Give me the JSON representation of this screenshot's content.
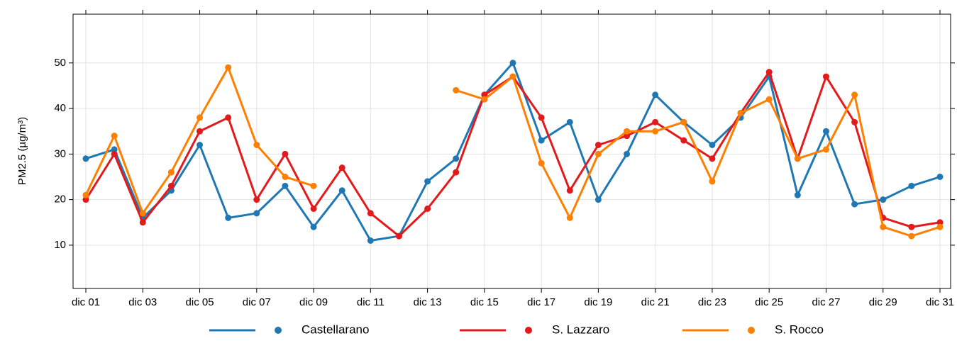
{
  "chart_data": {
    "type": "line",
    "y_label": "PM2.5 (µg/m³)",
    "categories": [
      "dic 01",
      null,
      "dic 03",
      null,
      "dic 05",
      null,
      "dic 07",
      null,
      "dic 09",
      null,
      "dic 11",
      null,
      "dic 13",
      null,
      "dic 15",
      null,
      "dic 17",
      null,
      "dic 19",
      null,
      "dic 21",
      null,
      "dic 23",
      null,
      "dic 25",
      null,
      "dic 27",
      null,
      "dic 29",
      null,
      "dic 31"
    ],
    "series": [
      {
        "name": "Castellarano",
        "color": "#1f78b4",
        "values": [
          29,
          31,
          16,
          22,
          32,
          16,
          17,
          23,
          14,
          22,
          11,
          12,
          24,
          29,
          43,
          50,
          33,
          37,
          20,
          30,
          43,
          37,
          32,
          38,
          47,
          21,
          35,
          19,
          20,
          23,
          25
        ]
      },
      {
        "name": "S. Lazzaro",
        "color": "#e31a1c",
        "values": [
          20,
          30,
          15,
          23,
          35,
          38,
          20,
          30,
          18,
          27,
          17,
          12,
          18,
          26,
          43,
          47,
          38,
          22,
          32,
          34,
          37,
          33,
          29,
          39,
          48,
          29,
          47,
          37,
          16,
          14,
          15
        ]
      },
      {
        "name": "S. Rocco",
        "color": "#ff7f00",
        "values": [
          21,
          34,
          17,
          26,
          38,
          49,
          32,
          25,
          23,
          null,
          null,
          null,
          null,
          44,
          42,
          47,
          28,
          16,
          30,
          35,
          35,
          37,
          24,
          39,
          42,
          29,
          31,
          43,
          14,
          12,
          14
        ]
      }
    ],
    "ylim": [
      0.5,
      60.7
    ],
    "yticks": [
      10,
      20,
      30,
      40,
      50
    ],
    "grid": true
  }
}
